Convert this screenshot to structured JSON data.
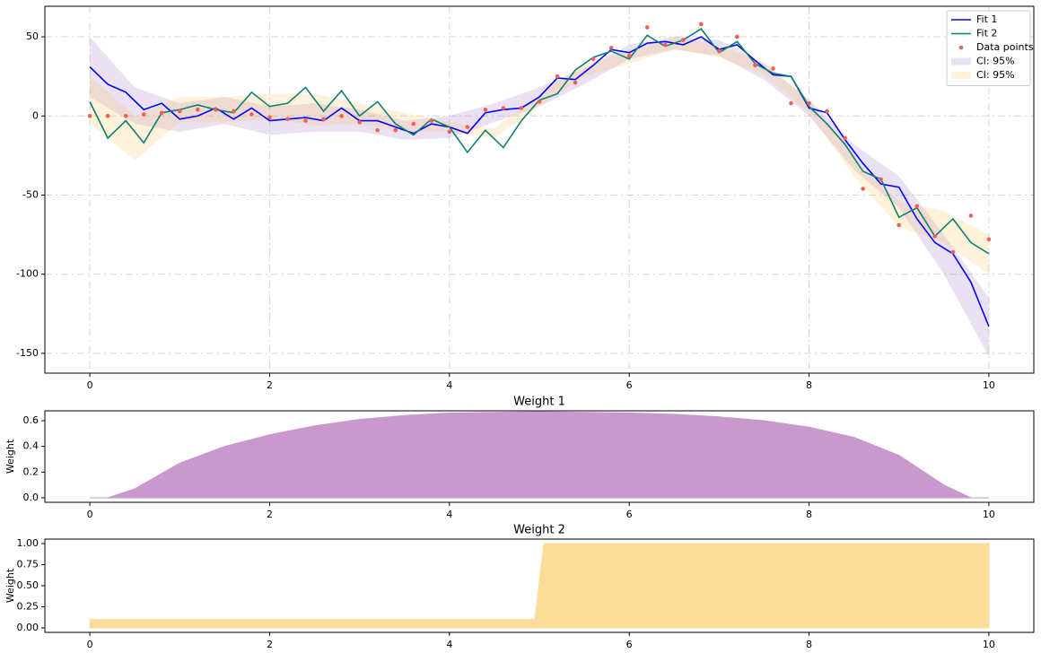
{
  "chart_data": [
    {
      "type": "line",
      "x": [
        0,
        0.2,
        0.4,
        0.6,
        0.8,
        1,
        1.2,
        1.4,
        1.6,
        1.8,
        2,
        2.2,
        2.4,
        2.6,
        2.8,
        3,
        3.2,
        3.4,
        3.6,
        3.8,
        4,
        4.2,
        4.4,
        4.6,
        4.8,
        5,
        5.2,
        5.4,
        5.6,
        5.8,
        6,
        6.2,
        6.4,
        6.6,
        6.8,
        7,
        7.2,
        7.4,
        7.6,
        7.8,
        8,
        8.2,
        8.4,
        8.6,
        8.8,
        9,
        9.2,
        9.4,
        9.6,
        9.8,
        10
      ],
      "series": [
        {
          "name": "Fit 1",
          "color": "#0000ff",
          "values": [
            31,
            20,
            15,
            4,
            8,
            -2,
            0,
            5,
            -2,
            5,
            -3,
            -2,
            -1,
            -3,
            5,
            -3,
            -3,
            -7,
            -11,
            -5,
            -7,
            -11,
            2,
            4,
            5,
            12,
            24,
            23,
            32,
            42,
            40,
            46,
            47,
            45,
            50,
            42,
            45,
            35,
            26,
            25,
            5,
            2,
            -15,
            -30,
            -43,
            -45,
            -65,
            -80,
            -87,
            -105,
            -133
          ]
        },
        {
          "name": "Fit 2",
          "color": "#0f7f6f",
          "values": [
            9,
            -14,
            -3,
            -17,
            2,
            4,
            7,
            4,
            2,
            15,
            6,
            8,
            18,
            3,
            16,
            0,
            9,
            -5,
            -12,
            -2,
            -7,
            -23,
            -9,
            -20,
            -3,
            10,
            14,
            29,
            37,
            41,
            36,
            51,
            44,
            48,
            55,
            40,
            47,
            33,
            27,
            25,
            6,
            -5,
            -18,
            -35,
            -40,
            -64,
            -58,
            -76,
            -65,
            -80,
            -87
          ]
        }
      ],
      "scatter": {
        "name": "Data points",
        "color": "#f0605a",
        "values": [
          0,
          0,
          0,
          1,
          2,
          3,
          4,
          4,
          3,
          1,
          -1,
          -2,
          -3,
          -2,
          0,
          -4,
          -9,
          -9,
          -5,
          -3,
          -10,
          -7,
          4,
          5,
          5,
          9,
          25,
          21,
          36,
          43,
          38,
          56,
          45,
          48,
          58,
          41,
          50,
          32,
          30,
          8,
          8,
          3,
          -14,
          -46,
          -40,
          -69,
          -57,
          -76,
          -86,
          -63,
          -78
        ]
      },
      "band_x": [
        0,
        0.5,
        1,
        1.5,
        2,
        2.5,
        3,
        3.5,
        4,
        4.5,
        5,
        5.5,
        6,
        6.5,
        7,
        7.5,
        8,
        8.5,
        9,
        9.5,
        10
      ],
      "bands": [
        {
          "name": "CI: 95%",
          "color": "#9467bd",
          "lower": [
            12,
            -5,
            -10,
            -5,
            -12,
            -10,
            -10,
            -15,
            -14,
            -4,
            6,
            20,
            36,
            42,
            38,
            23,
            0,
            -34,
            -58,
            -100,
            -152
          ],
          "upper": [
            50,
            18,
            8,
            12,
            6,
            8,
            4,
            -3,
            0,
            8,
            18,
            30,
            45,
            50,
            48,
            33,
            10,
            -18,
            -38,
            -75,
            -115
          ]
        },
        {
          "name": "CI: 95%",
          "color": "#ffc04d",
          "lower": [
            -5,
            -28,
            -4,
            -4,
            -2,
            -6,
            -5,
            -10,
            -10,
            -14,
            6,
            25,
            33,
            42,
            37,
            26,
            2,
            -38,
            -70,
            -80,
            -100
          ],
          "upper": [
            25,
            0,
            12,
            12,
            14,
            14,
            8,
            2,
            -4,
            -8,
            14,
            33,
            40,
            50,
            44,
            34,
            10,
            -28,
            -54,
            -60,
            -75
          ]
        }
      ],
      "xlim": [
        -0.5,
        10.5
      ],
      "ylim": [
        -162.5,
        69.3
      ],
      "xticks": [
        0,
        2,
        4,
        6,
        8,
        10
      ],
      "yticks": [
        -150,
        -100,
        -50,
        0,
        50
      ],
      "grid": true,
      "legend": "upper right"
    },
    {
      "type": "area",
      "title": "Weight 1",
      "ylabel": "Weight",
      "color": "#c48ec8",
      "x": [
        0,
        0.2,
        0.5,
        1,
        1.5,
        2,
        2.5,
        3,
        3.5,
        4,
        4.5,
        5,
        5.5,
        6,
        6.5,
        7,
        7.5,
        8,
        8.5,
        9,
        9.5,
        9.8,
        10
      ],
      "values": [
        0,
        0,
        0.07,
        0.27,
        0.4,
        0.49,
        0.56,
        0.61,
        0.64,
        0.66,
        0.665,
        0.67,
        0.665,
        0.66,
        0.65,
        0.63,
        0.6,
        0.55,
        0.47,
        0.33,
        0.1,
        0,
        0
      ],
      "xlim": [
        -0.5,
        10.5
      ],
      "ylim": [
        -0.035,
        0.677
      ],
      "xticks": [
        0,
        2,
        4,
        6,
        8,
        10
      ],
      "yticks": [
        {
          "value": 0,
          "label": "0.0"
        },
        0.2,
        0.4,
        0.6
      ],
      "grid": false
    },
    {
      "type": "area",
      "title": "Weight 2",
      "ylabel": "Weight",
      "color": "#fdd98f",
      "x": [
        0,
        4.95,
        5.05,
        10
      ],
      "values": [
        0.1,
        0.1,
        1,
        1
      ],
      "xlim": [
        -0.5,
        10.5
      ],
      "ylim": [
        -0.053,
        1.053
      ],
      "xticks": [
        0,
        2,
        4,
        6,
        8,
        10
      ],
      "yticks": [
        {
          "value": 0,
          "label": "0.00"
        },
        {
          "value": 0.25,
          "label": "0.25"
        },
        {
          "value": 0.5,
          "label": "0.50"
        },
        {
          "value": 0.75,
          "label": "0.75"
        },
        {
          "value": 1,
          "label": "1.00"
        }
      ],
      "grid": false
    }
  ]
}
